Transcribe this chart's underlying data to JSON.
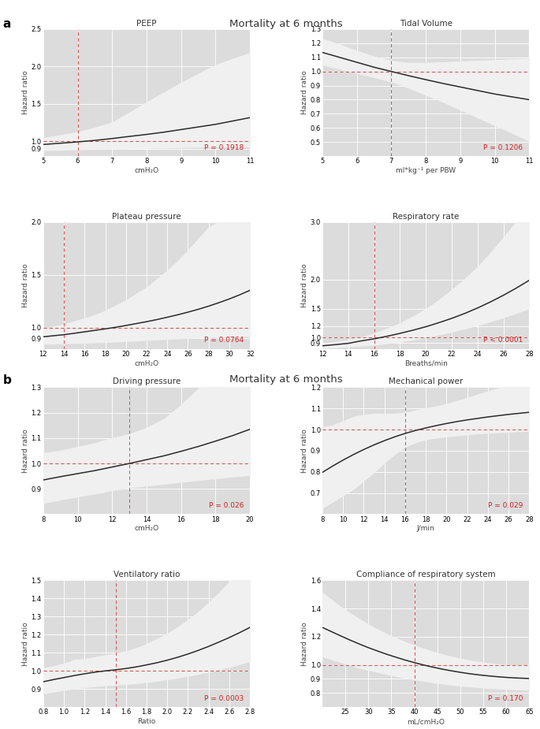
{
  "title_a": "Mortality at 6 months",
  "title_b": "Mortality at 6 months",
  "label_a": "a",
  "label_b": "b",
  "bg_color": "#dcdcdc",
  "ci_color": "#f0f0f0",
  "line_color": "#2a2a2a",
  "ref_line_color": "#d9534f",
  "grid_color": "white",
  "panels": [
    {
      "title": "PEEP",
      "xlabel": "cmH₂O",
      "ylabel": "Hazard ratio",
      "xlim": [
        5,
        11
      ],
      "ylim": [
        0.8,
        2.5
      ],
      "xticks": [
        5,
        6,
        7,
        8,
        9,
        10,
        11
      ],
      "yticks": [
        0.9,
        1.0,
        1.5,
        2.0,
        2.5
      ],
      "ytick_labels": [
        "0.9",
        "1.0",
        "1.5",
        "2.0",
        "2.5"
      ],
      "ref_x": 6.0,
      "ref_y": 1.0,
      "pval": "P = 0.1918",
      "x": [
        5.0,
        5.5,
        6.0,
        6.5,
        7.0,
        7.5,
        8.0,
        8.5,
        9.0,
        9.5,
        10.0,
        10.5,
        11.0
      ],
      "y": [
        0.955,
        0.972,
        0.99,
        1.01,
        1.035,
        1.063,
        1.09,
        1.12,
        1.155,
        1.19,
        1.225,
        1.27,
        1.315
      ],
      "ci_low": [
        0.88,
        0.885,
        0.89,
        0.895,
        0.9,
        0.905,
        0.91,
        0.915,
        0.92,
        0.925,
        0.93,
        0.93,
        0.93
      ],
      "ci_high": [
        1.04,
        1.08,
        1.12,
        1.18,
        1.25,
        1.38,
        1.52,
        1.65,
        1.78,
        1.9,
        2.02,
        2.1,
        2.18
      ]
    },
    {
      "title": "Tidal Volume",
      "xlabel": "ml*kg⁻¹ per PBW",
      "ylabel": "Hazard ratio",
      "xlim": [
        5,
        11
      ],
      "ylim": [
        0.4,
        1.3
      ],
      "xticks": [
        5,
        6,
        7,
        8,
        9,
        10,
        11
      ],
      "yticks": [
        0.5,
        0.6,
        0.7,
        0.8,
        0.9,
        1.0,
        1.1,
        1.2,
        1.3
      ],
      "ytick_labels": [
        "0.5",
        "0.6",
        "0.7",
        "0.8",
        "0.9",
        "1.0",
        "1.1",
        "1.2",
        "1.3"
      ],
      "ref_x": 7.0,
      "ref_y": 1.0,
      "pval": "P = 0.1206",
      "x": [
        5.0,
        5.5,
        6.0,
        6.5,
        7.0,
        7.5,
        8.0,
        8.5,
        9.0,
        9.5,
        10.0,
        10.5,
        11.0
      ],
      "y": [
        1.135,
        1.1,
        1.065,
        1.03,
        1.0,
        0.97,
        0.942,
        0.915,
        0.89,
        0.865,
        0.84,
        0.82,
        0.8
      ],
      "ci_low": [
        1.05,
        1.02,
        0.99,
        0.96,
        0.93,
        0.885,
        0.835,
        0.785,
        0.73,
        0.675,
        0.62,
        0.565,
        0.51
      ],
      "ci_high": [
        1.23,
        1.19,
        1.145,
        1.105,
        1.075,
        1.06,
        1.06,
        1.065,
        1.07,
        1.075,
        1.08,
        1.085,
        1.09
      ]
    },
    {
      "title": "Plateau pressure",
      "xlabel": "cmH₂O",
      "ylabel": "Hazard ratio",
      "xlim": [
        12,
        32
      ],
      "ylim": [
        0.8,
        2.0
      ],
      "xticks": [
        12,
        14,
        16,
        18,
        20,
        22,
        24,
        26,
        28,
        30,
        32
      ],
      "yticks": [
        0.9,
        1.0,
        1.5,
        2.0
      ],
      "ytick_labels": [
        "0.9",
        "1.0",
        "1.5",
        "2.0"
      ],
      "ref_x": 14.0,
      "ref_y": 1.0,
      "pval": "P = 0.0764",
      "x": [
        12,
        13,
        14,
        15,
        16,
        17,
        18,
        19,
        20,
        21,
        22,
        23,
        24,
        25,
        26,
        27,
        28,
        29,
        30,
        31,
        32
      ],
      "y": [
        0.915,
        0.925,
        0.935,
        0.948,
        0.962,
        0.976,
        0.99,
        1.005,
        1.022,
        1.04,
        1.058,
        1.078,
        1.1,
        1.123,
        1.148,
        1.175,
        1.205,
        1.238,
        1.273,
        1.312,
        1.355
      ],
      "ci_low": [
        0.85,
        0.852,
        0.855,
        0.857,
        0.86,
        0.863,
        0.866,
        0.87,
        0.875,
        0.88,
        0.885,
        0.89,
        0.896,
        0.9,
        0.905,
        0.91,
        0.915,
        0.918,
        0.92,
        0.922,
        0.924
      ],
      "ci_high": [
        0.99,
        1.01,
        1.03,
        1.06,
        1.09,
        1.12,
        1.16,
        1.21,
        1.26,
        1.32,
        1.38,
        1.46,
        1.54,
        1.63,
        1.73,
        1.84,
        1.95,
        2.0,
        2.0,
        2.0,
        2.0
      ]
    },
    {
      "title": "Respiratory rate",
      "xlabel": "Breaths/min",
      "ylabel": "Hazard ratio",
      "xlim": [
        12,
        28
      ],
      "ylim": [
        0.8,
        3.0
      ],
      "xticks": [
        12,
        14,
        16,
        18,
        20,
        22,
        24,
        26,
        28
      ],
      "yticks": [
        0.9,
        1.0,
        1.2,
        1.5,
        2.0,
        3.0
      ],
      "ytick_labels": [
        "0.9",
        "1.0",
        "1.2",
        "1.5",
        "2.0",
        "3.0"
      ],
      "ref_x": 16.0,
      "ref_y": 1.0,
      "pval": "P < 0.0001",
      "x": [
        12,
        13,
        14,
        15,
        16,
        17,
        18,
        19,
        20,
        21,
        22,
        23,
        24,
        25,
        26,
        27,
        28
      ],
      "y": [
        0.855,
        0.875,
        0.897,
        0.94,
        0.975,
        1.02,
        1.07,
        1.125,
        1.185,
        1.255,
        1.33,
        1.415,
        1.51,
        1.615,
        1.73,
        1.855,
        1.99
      ],
      "ci_low": [
        0.815,
        0.83,
        0.845,
        0.86,
        0.875,
        0.9,
        0.93,
        0.965,
        1.005,
        1.05,
        1.1,
        1.155,
        1.215,
        1.28,
        1.35,
        1.425,
        1.505
      ],
      "ci_high": [
        0.895,
        0.92,
        0.952,
        1.0,
        1.065,
        1.15,
        1.245,
        1.36,
        1.49,
        1.645,
        1.82,
        2.01,
        2.22,
        2.46,
        2.73,
        3.0,
        3.0
      ]
    },
    {
      "title": "Driving pressure",
      "xlabel": "cmH₂O",
      "ylabel": "Hazard ratio",
      "xlim": [
        8,
        20
      ],
      "ylim": [
        0.8,
        1.3
      ],
      "xticks": [
        8,
        10,
        12,
        14,
        16,
        18,
        20
      ],
      "yticks": [
        0.9,
        1.0,
        1.1,
        1.2,
        1.3
      ],
      "ytick_labels": [
        "0.9",
        "1.0",
        "1.1",
        "1.2",
        "1.3"
      ],
      "ref_x": 13.0,
      "ref_y": 1.0,
      "pval": "P = 0.026",
      "x": [
        8,
        9,
        10,
        11,
        12,
        13,
        14,
        15,
        16,
        17,
        18,
        19,
        20
      ],
      "y": [
        0.935,
        0.948,
        0.96,
        0.972,
        0.986,
        1.0,
        1.015,
        1.03,
        1.048,
        1.067,
        1.088,
        1.11,
        1.135
      ],
      "ci_low": [
        0.845,
        0.858,
        0.87,
        0.882,
        0.895,
        0.905,
        0.913,
        0.92,
        0.928,
        0.935,
        0.942,
        0.949,
        0.955
      ],
      "ci_high": [
        1.04,
        1.05,
        1.065,
        1.08,
        1.1,
        1.115,
        1.14,
        1.175,
        1.23,
        1.295,
        1.345,
        1.39,
        1.44
      ]
    },
    {
      "title": "Mechanical power",
      "xlabel": "J/min",
      "ylabel": "Hazard ratio",
      "xlim": [
        8,
        28
      ],
      "ylim": [
        0.6,
        1.2
      ],
      "xticks": [
        8,
        10,
        12,
        14,
        16,
        18,
        20,
        22,
        24,
        26,
        28
      ],
      "yticks": [
        0.7,
        0.8,
        0.9,
        1.0,
        1.1,
        1.2
      ],
      "ytick_labels": [
        "0.7",
        "0.8",
        "0.9",
        "1.0",
        "1.1",
        "1.2"
      ],
      "ref_x": 16.0,
      "ref_y": 1.0,
      "pval": "P = 0.029",
      "x": [
        8,
        9,
        10,
        11,
        12,
        13,
        14,
        15,
        16,
        17,
        18,
        19,
        20,
        21,
        22,
        23,
        24,
        25,
        26,
        27,
        28
      ],
      "y": [
        0.798,
        0.828,
        0.856,
        0.882,
        0.906,
        0.928,
        0.948,
        0.966,
        0.982,
        0.996,
        1.008,
        1.019,
        1.029,
        1.038,
        1.046,
        1.053,
        1.06,
        1.066,
        1.072,
        1.077,
        1.082
      ],
      "ci_low": [
        0.63,
        0.66,
        0.69,
        0.72,
        0.76,
        0.8,
        0.845,
        0.885,
        0.92,
        0.94,
        0.955,
        0.962,
        0.968,
        0.973,
        0.978,
        0.982,
        0.985,
        0.988,
        0.99,
        0.992,
        0.994
      ],
      "ci_high": [
        1.01,
        1.02,
        1.04,
        1.06,
        1.07,
        1.075,
        1.075,
        1.075,
        1.08,
        1.09,
        1.1,
        1.11,
        1.12,
        1.135,
        1.15,
        1.165,
        1.18,
        1.195,
        1.21,
        1.225,
        1.24
      ]
    },
    {
      "title": "Ventilatory ratio",
      "xlabel": "Ratio",
      "ylabel": "Hazard ratio",
      "xlim": [
        0.8,
        2.8
      ],
      "ylim": [
        0.8,
        1.5
      ],
      "xticks": [
        0.8,
        1.0,
        1.2,
        1.4,
        1.6,
        1.8,
        2.0,
        2.2,
        2.4,
        2.6,
        2.8
      ],
      "yticks": [
        0.9,
        1.0,
        1.1,
        1.2,
        1.3,
        1.4,
        1.5
      ],
      "ytick_labels": [
        "0.9",
        "1.0",
        "1.1",
        "1.2",
        "1.3",
        "1.4",
        "1.5"
      ],
      "ref_x": 1.5,
      "ref_y": 1.0,
      "pval": "P = 0.0003",
      "x": [
        0.8,
        0.9,
        1.0,
        1.1,
        1.2,
        1.3,
        1.4,
        1.5,
        1.6,
        1.7,
        1.8,
        1.9,
        2.0,
        2.1,
        2.2,
        2.3,
        2.4,
        2.5,
        2.6,
        2.7,
        2.8
      ],
      "y": [
        0.94,
        0.952,
        0.963,
        0.974,
        0.984,
        0.993,
        1.0,
        1.006,
        1.013,
        1.022,
        1.033,
        1.045,
        1.059,
        1.075,
        1.093,
        1.113,
        1.135,
        1.159,
        1.184,
        1.211,
        1.24
      ],
      "ci_low": [
        0.875,
        0.886,
        0.895,
        0.903,
        0.91,
        0.916,
        0.921,
        0.924,
        0.928,
        0.933,
        0.939,
        0.946,
        0.954,
        0.963,
        0.973,
        0.984,
        0.996,
        1.009,
        1.023,
        1.038,
        1.054
      ],
      "ci_high": [
        1.015,
        1.025,
        1.04,
        1.06,
        1.065,
        1.075,
        1.085,
        1.095,
        1.108,
        1.125,
        1.148,
        1.175,
        1.205,
        1.24,
        1.28,
        1.325,
        1.375,
        1.43,
        1.49,
        1.56,
        1.62
      ]
    },
    {
      "title": "Compliance of respiratory system",
      "xlabel": "mL/cmH₂O",
      "ylabel": "Hazard ratio",
      "xlim": [
        20,
        65
      ],
      "ylim": [
        0.7,
        1.6
      ],
      "xticks": [
        25,
        30,
        35,
        40,
        45,
        50,
        55,
        60,
        65
      ],
      "yticks": [
        0.8,
        0.9,
        1.0,
        1.2,
        1.4,
        1.6
      ],
      "ytick_labels": [
        "0.8",
        "0.9",
        "1.0",
        "1.2",
        "1.4",
        "1.6"
      ],
      "ref_x": 40.0,
      "ref_y": 1.0,
      "pval": "P = 0.170",
      "x": [
        20,
        22,
        24,
        26,
        28,
        30,
        32,
        34,
        36,
        38,
        40,
        42,
        44,
        46,
        48,
        50,
        52,
        54,
        56,
        58,
        60,
        62,
        65
      ],
      "y": [
        1.265,
        1.235,
        1.205,
        1.176,
        1.148,
        1.122,
        1.098,
        1.075,
        1.054,
        1.034,
        1.016,
        0.999,
        0.984,
        0.97,
        0.958,
        0.947,
        0.937,
        0.929,
        0.922,
        0.916,
        0.911,
        0.907,
        0.903
      ],
      "ci_low": [
        1.06,
        1.04,
        1.02,
        1.0,
        0.98,
        0.965,
        0.95,
        0.935,
        0.922,
        0.91,
        0.898,
        0.887,
        0.877,
        0.868,
        0.86,
        0.853,
        0.847,
        0.842,
        0.837,
        0.833,
        0.83,
        0.827,
        0.824
      ],
      "ci_high": [
        1.51,
        1.46,
        1.41,
        1.365,
        1.325,
        1.285,
        1.25,
        1.218,
        1.19,
        1.162,
        1.137,
        1.114,
        1.093,
        1.074,
        1.058,
        1.044,
        1.031,
        1.02,
        1.011,
        1.004,
        0.998,
        0.993,
        0.988
      ]
    }
  ]
}
